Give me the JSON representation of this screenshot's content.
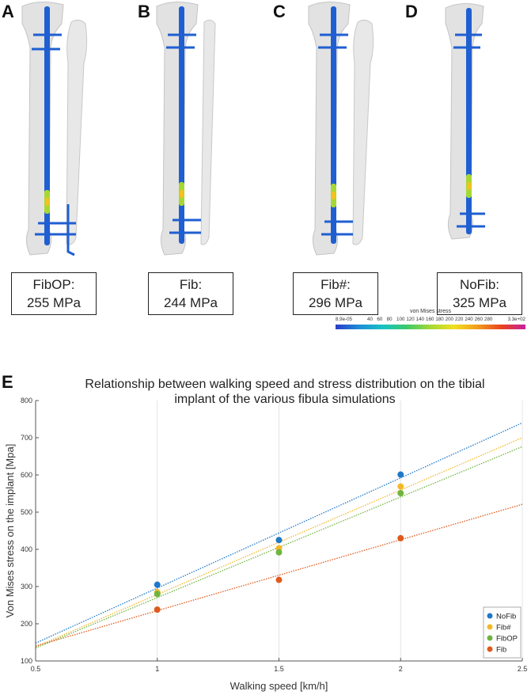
{
  "panels": [
    {
      "letter": "A",
      "label": "FibOP:",
      "value": "255 MPa"
    },
    {
      "letter": "B",
      "label": "Fib:",
      "value": "244 MPa"
    },
    {
      "letter": "C",
      "label": "Fib#:",
      "value": "296 MPa"
    },
    {
      "letter": "D",
      "label": "NoFib:",
      "value": "325 MPa"
    }
  ],
  "colorbar": {
    "title": "von Mises stress",
    "min_label": "8.9e-05",
    "max_label": "3.3e+02",
    "ticks": [
      "40",
      "60",
      "80",
      "100",
      "120",
      "140",
      "160",
      "180",
      "200",
      "220",
      "240",
      "260",
      "280"
    ]
  },
  "panel_e_letter": "E",
  "colors": {
    "NoFib": "#1f78c8",
    "Fib#": "#f2b82a",
    "FibOP": "#6fb43f",
    "Fib": "#e05a1c",
    "implant": "#1f5fd1"
  },
  "chart_data": {
    "type": "scatter",
    "title": "Relationship between walking speed and stress distribution on the tibial implant of the various fibula simulations",
    "title_lines": [
      "Relationship between walking speed and stress distribution on the tibial",
      "implant of the various fibula simulations"
    ],
    "xlabel": "Walking speed [km/h]",
    "ylabel": "Von Mises stress on the implant [Mpa]",
    "xlim": [
      0.5,
      2.5
    ],
    "ylim": [
      100,
      800
    ],
    "xticks": [
      0.5,
      1,
      1.5,
      2,
      2.5
    ],
    "xtick_labels": [
      "0.5",
      "1",
      "1.5",
      "2",
      "2.5"
    ],
    "yticks": [
      100,
      200,
      300,
      400,
      500,
      600,
      700,
      800
    ],
    "ytick_labels": [
      "100",
      "200",
      "300",
      "400",
      "500",
      "600",
      "700",
      "800"
    ],
    "grid": "vertical",
    "legend_position": "bottom-right",
    "series": [
      {
        "name": "NoFib",
        "x": [
          1,
          1.5,
          2
        ],
        "y": [
          305,
          425,
          601
        ],
        "trend": [
          [
            0.5,
            148
          ],
          [
            2.5,
            740
          ]
        ]
      },
      {
        "name": "Fib#",
        "x": [
          1,
          1.5,
          2
        ],
        "y": [
          285,
          403,
          569
        ],
        "trend": [
          [
            0.5,
            138
          ],
          [
            2.5,
            700
          ]
        ]
      },
      {
        "name": "FibOP",
        "x": [
          1,
          1.5,
          2
        ],
        "y": [
          280,
          392,
          551
        ],
        "trend": [
          [
            0.5,
            135
          ],
          [
            2.5,
            676
          ]
        ]
      },
      {
        "name": "Fib",
        "x": [
          1,
          1.5,
          2
        ],
        "y": [
          238,
          318,
          430
        ],
        "trend": [
          [
            0.5,
            140
          ],
          [
            2.5,
            521
          ]
        ]
      }
    ]
  }
}
